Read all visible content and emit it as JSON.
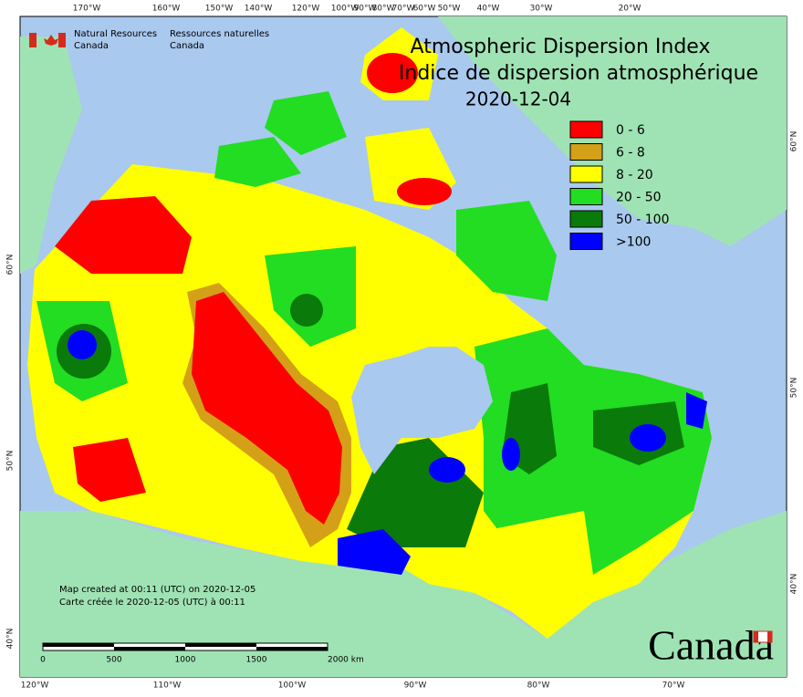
{
  "agency": {
    "en": [
      "Natural Resources",
      "Canada"
    ],
    "fr": [
      "Ressources naturelles",
      "Canada"
    ]
  },
  "title": [
    "Atmospheric Dispersion Index",
    "Indice de dispersion atmosphérique"
  ],
  "date": "2020-12-04",
  "legend": [
    {
      "label": "0 - 6",
      "color": "#ff0000"
    },
    {
      "label": "6 - 8",
      "color": "#d4a017"
    },
    {
      "label": "8 - 20",
      "color": "#ffff00"
    },
    {
      "label": "20 - 50",
      "color": "#22dd22"
    },
    {
      "label": "50 - 100",
      "color": "#0a7a0a"
    },
    {
      "label": ">100",
      "color": "#0000ff"
    }
  ],
  "graticule": {
    "top": [
      "170°W",
      "160°W",
      "150°W",
      "140°W",
      "120°W",
      "100°W",
      "90°W",
      "80°W",
      "70°W",
      "60°W",
      "50°W",
      "40°W",
      "30°W",
      "20°W"
    ],
    "bottom": [
      "120°W",
      "110°W",
      "100°W",
      "90°W",
      "80°W",
      "70°W"
    ],
    "left": [
      "60°N",
      "50°N",
      "40°N"
    ],
    "right": [
      "60°N",
      "50°N",
      "40°N"
    ]
  },
  "credits": [
    "Map created at 00:11 (UTC) on 2020-12-05",
    "Carte créée le 2020-12-05 (UTC) à 00:11"
  ],
  "scale": [
    "0",
    "500",
    "1000",
    "1500",
    "2000 km"
  ],
  "wordmark": "Canada"
}
